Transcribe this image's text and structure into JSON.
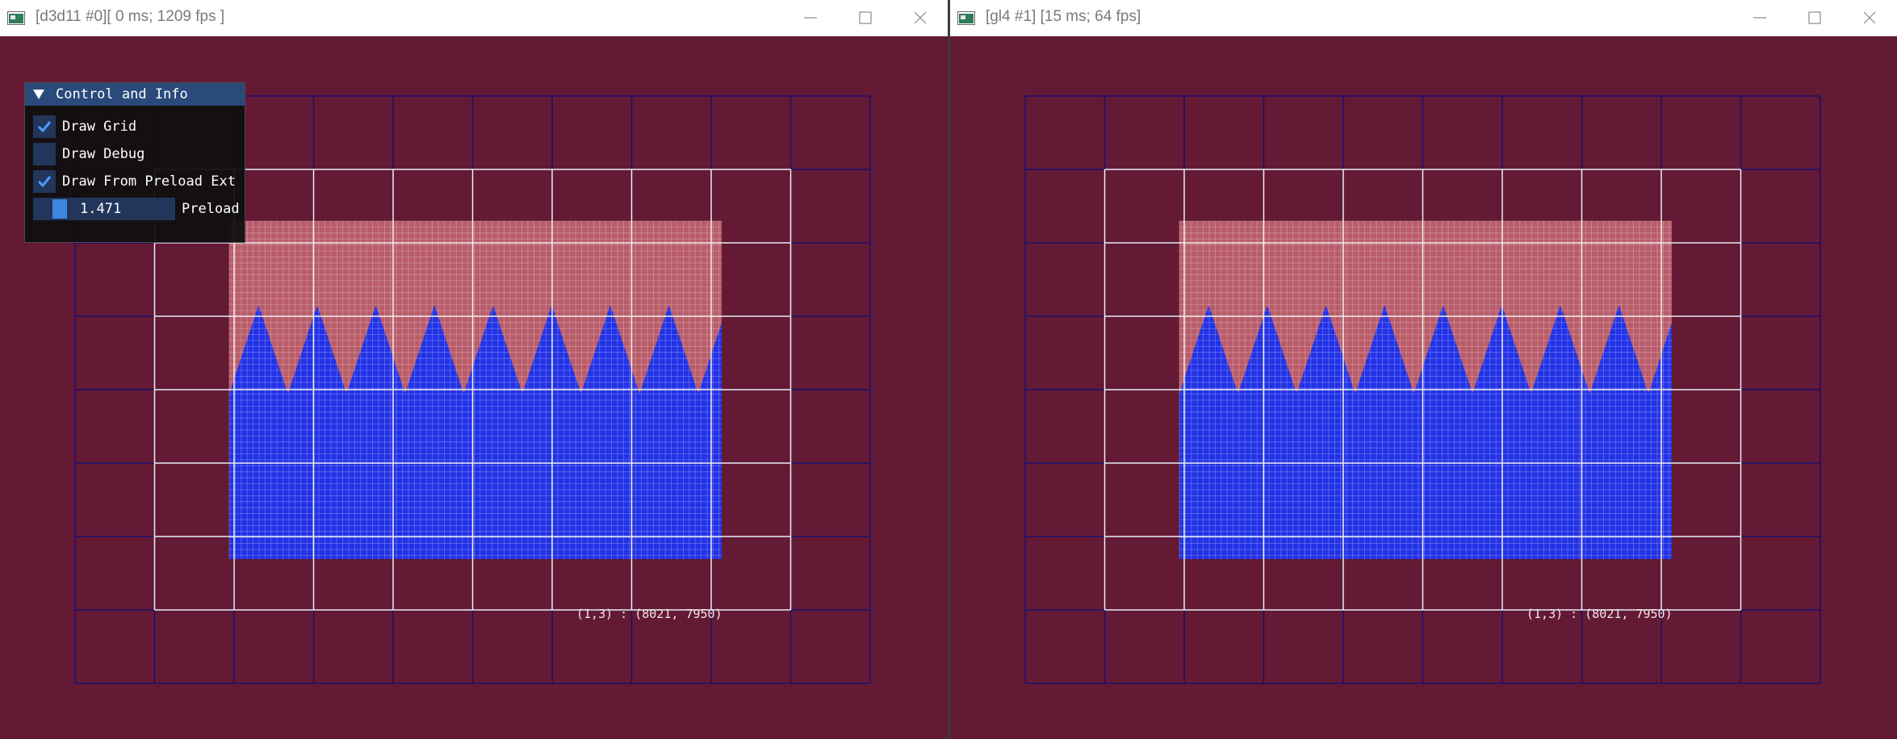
{
  "left_window": {
    "title": "[d3d11 #0][ 0 ms; 1209 fps ]",
    "readout": "(1,3) : (8021, 7950)"
  },
  "right_window": {
    "title": "[gl4 #1] [15 ms; 64 fps]",
    "readout": "(1,3) : (8021, 7950)"
  },
  "panel": {
    "title": "Control and Info",
    "expanded": true,
    "checkboxes": [
      {
        "label": "Draw Grid",
        "checked": true
      },
      {
        "label": "Draw Debug",
        "checked": false
      },
      {
        "label": "Draw From Preload Ext",
        "checked": true
      }
    ],
    "slider": {
      "value": "1.471",
      "label": "Preload",
      "fraction": 0.15
    }
  },
  "colors": {
    "background": "#641a34",
    "outer_grid": "#1a0f6e",
    "inner_grid": "#f0f0f0",
    "fill_upper": "#b95c6a",
    "fill_lower": "#2232e6",
    "accent": "#3d85e0"
  },
  "icons": {
    "app": "app-window-icon",
    "minimize": "minimize-icon",
    "maximize": "maximize-icon",
    "close": "close-icon",
    "collapse": "collapse-arrow-icon",
    "check": "checkmark-icon"
  }
}
